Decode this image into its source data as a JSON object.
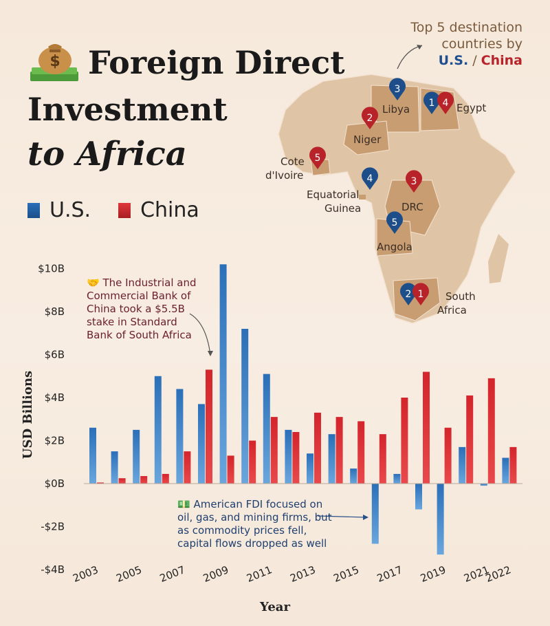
{
  "title": {
    "line1": "Foreign Direct",
    "line2": "Investment",
    "line3": "to Africa"
  },
  "legend": {
    "us_label": "U.S.",
    "china_label": "China",
    "us_color": "#2a6fb8",
    "china_color": "#d3252b"
  },
  "top5": {
    "line1": "Top 5 destination",
    "line2": "countries by",
    "us_text": "U.S.",
    "sep": " / ",
    "cn_text": "China"
  },
  "map": {
    "countries": [
      {
        "name": "Libya",
        "us_rank": "3",
        "cn_rank": ""
      },
      {
        "name": "Egypt",
        "us_rank": "1",
        "cn_rank": "4"
      },
      {
        "name": "Niger",
        "us_rank": "",
        "cn_rank": "2"
      },
      {
        "name": "Cote d'Ivoire",
        "us_rank": "",
        "cn_rank": "5"
      },
      {
        "name": "Equatorial Guinea",
        "us_rank": "4",
        "cn_rank": ""
      },
      {
        "name": "DRC",
        "us_rank": "",
        "cn_rank": "3"
      },
      {
        "name": "Angola",
        "us_rank": "5",
        "cn_rank": ""
      },
      {
        "name": "South Africa",
        "us_rank": "2",
        "cn_rank": "1"
      }
    ],
    "labels": {
      "libya": "Libya",
      "egypt": "Egypt",
      "niger": "Niger",
      "cote1": "Cote",
      "cote2": "d'Ivoire",
      "eqg1": "Equatorial",
      "eqg2": "Guinea",
      "drc": "DRC",
      "angola": "Angola",
      "sa1": "South",
      "sa2": "Africa"
    }
  },
  "annotations": {
    "icbc": "The Industrial and Commercial Bank of China took a $5.5B stake in Standard Bank of South Africa",
    "us_fdi": "American FDI focused on oil, gas, and mining firms, but as commodity prices fell, capital flows dropped as well"
  },
  "chart_data": {
    "type": "bar",
    "xlabel": "Year",
    "ylabel": "USD Billions",
    "ylim": [
      -4,
      10
    ],
    "yticks": [
      10,
      8,
      6,
      4,
      2,
      0,
      -2,
      -4
    ],
    "ytick_labels": [
      "$10B",
      "$8B",
      "$6B",
      "$4B",
      "$2B",
      "$0B",
      "-$2B",
      "-$4B"
    ],
    "categories": [
      "2003",
      "2004",
      "2005",
      "2006",
      "2007",
      "2008",
      "2009",
      "2010",
      "2011",
      "2012",
      "2013",
      "2014",
      "2015",
      "2016",
      "2017",
      "2018",
      "2019",
      "2020",
      "2021",
      "2022"
    ],
    "x_tick_labels": [
      "2003",
      "",
      "2005",
      "",
      "2007",
      "",
      "2009",
      "",
      "2011",
      "",
      "2013",
      "",
      "2015",
      "",
      "2017",
      "",
      "2019",
      "",
      "2021",
      "2022"
    ],
    "series": [
      {
        "name": "U.S.",
        "color": "#2a6fb8",
        "values": [
          2.6,
          1.5,
          2.5,
          5.0,
          4.4,
          3.7,
          10.2,
          7.2,
          5.1,
          2.5,
          1.4,
          2.3,
          0.7,
          -2.8,
          0.45,
          -1.2,
          -3.3,
          1.7,
          -0.1,
          1.2
        ]
      },
      {
        "name": "China",
        "color": "#d3252b",
        "values": [
          0.05,
          0.25,
          0.35,
          0.45,
          1.5,
          5.3,
          1.3,
          2.0,
          3.1,
          2.4,
          3.3,
          3.1,
          2.9,
          2.3,
          4.0,
          5.2,
          2.6,
          4.1,
          4.9,
          1.7
        ]
      }
    ]
  }
}
